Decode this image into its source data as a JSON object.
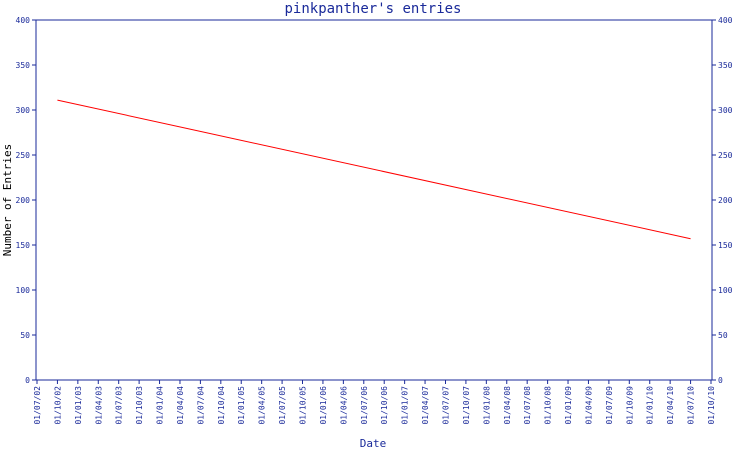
{
  "chart_data": {
    "type": "line",
    "title": "pinkpanther's entries",
    "xlabel": "Date",
    "ylabel": "Number of Entries",
    "ylim": [
      0,
      400
    ],
    "yticks": [
      0,
      50,
      100,
      150,
      200,
      250,
      300,
      350,
      400
    ],
    "categories": [
      "01/07/02",
      "01/10/02",
      "01/01/03",
      "01/04/03",
      "01/07/03",
      "01/10/03",
      "01/01/04",
      "01/04/04",
      "01/07/04",
      "01/10/04",
      "01/01/05",
      "01/04/05",
      "01/07/05",
      "01/10/05",
      "01/01/06",
      "01/04/06",
      "01/07/06",
      "01/10/06",
      "01/01/07",
      "01/04/07",
      "01/07/07",
      "01/10/07",
      "01/01/08",
      "01/04/08",
      "01/07/08",
      "01/10/08",
      "01/01/09",
      "01/04/09",
      "01/07/09",
      "01/10/09",
      "01/01/10",
      "01/04/10",
      "01/07/10",
      "01/10/10"
    ],
    "series": [
      {
        "color": "#ff0000",
        "points": [
          {
            "x": "01/10/02",
            "y": 311
          },
          {
            "x": "01/07/10",
            "y": 157
          }
        ]
      }
    ],
    "grid": false,
    "colors": {
      "axis": "#1a2a9a",
      "line": "#ff0000"
    }
  }
}
